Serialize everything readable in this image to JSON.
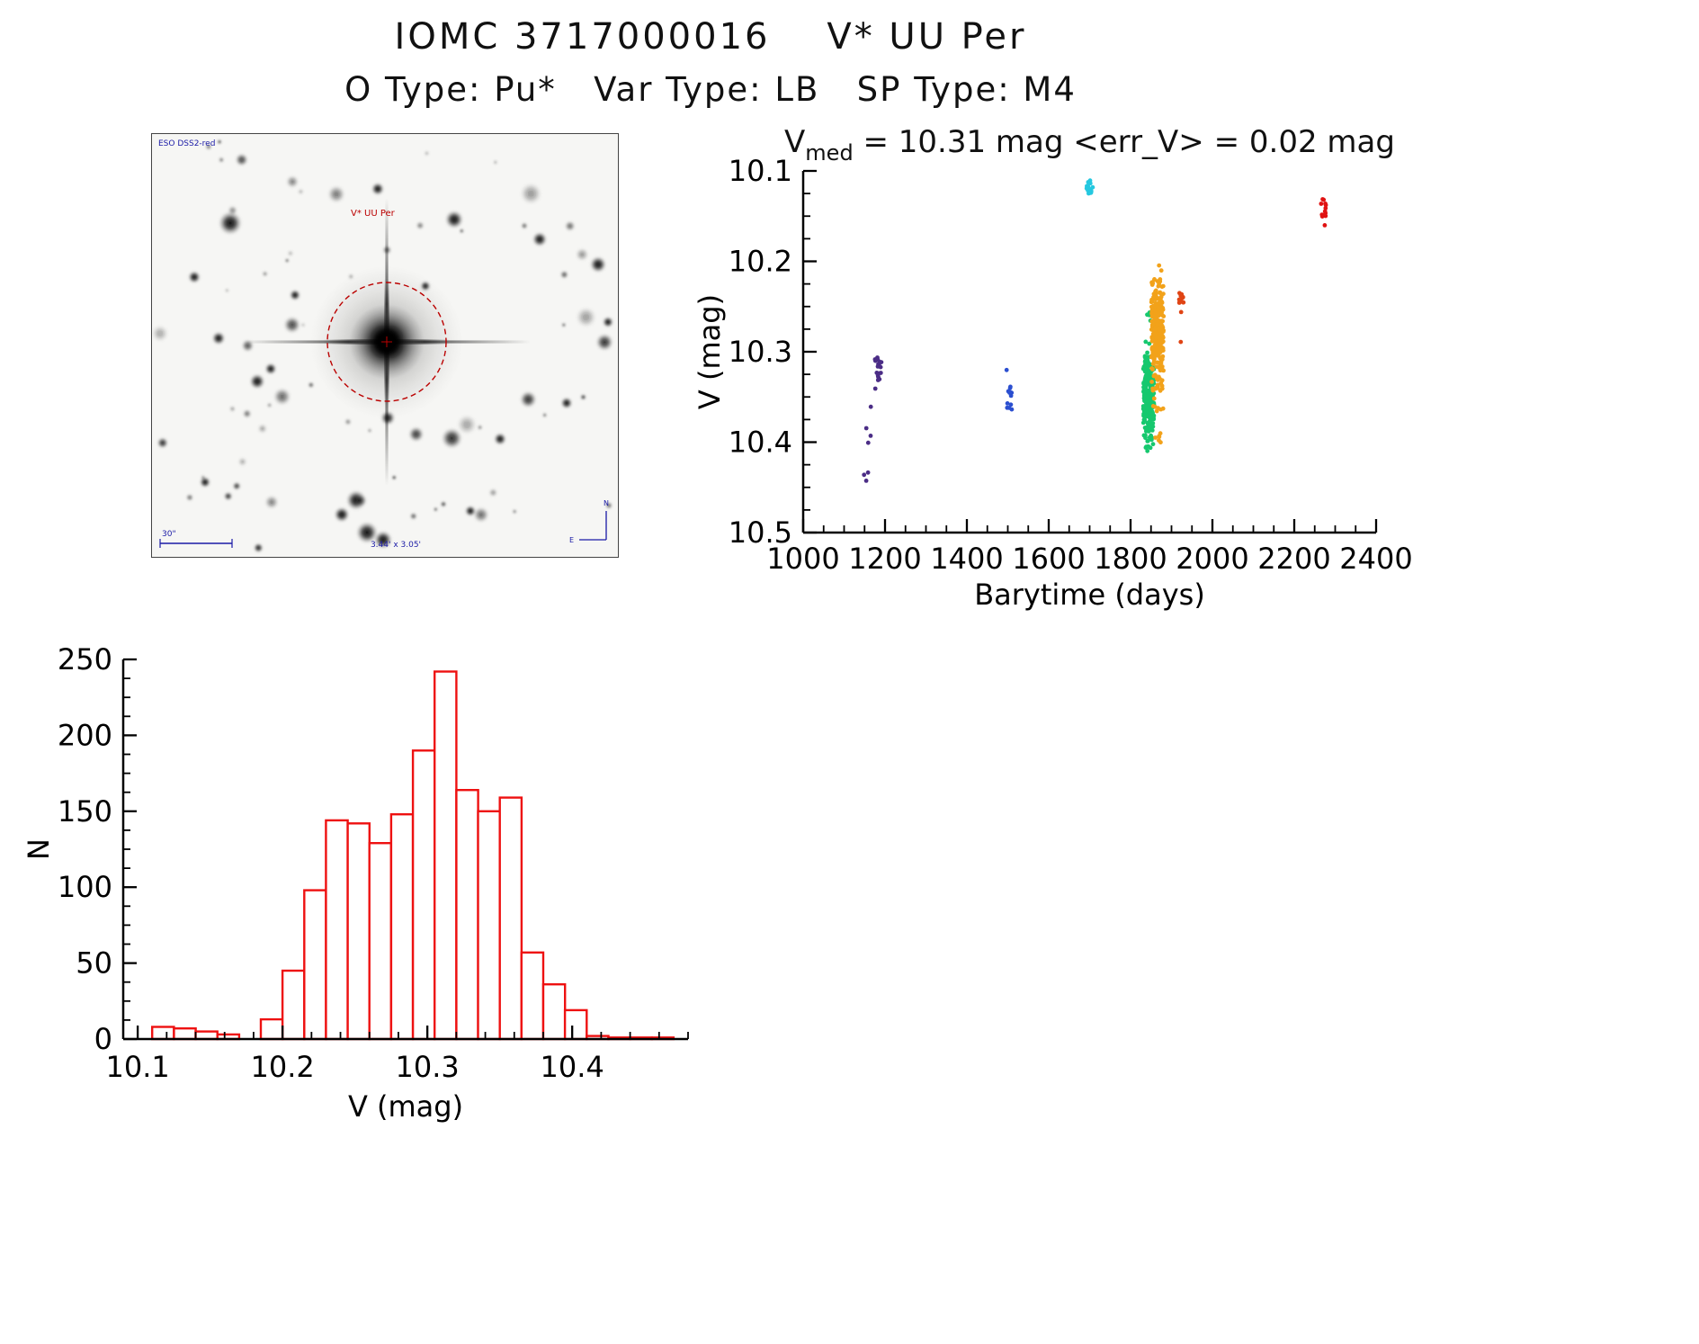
{
  "page": {
    "title": "IOMC 3717000016    V* UU Per",
    "subtitle": "O Type: Pu*   Var Type: LB   SP Type: M4"
  },
  "sky_image": {
    "survey_label": "ESO DSS2-red",
    "star_label": "V* UU Per",
    "scale_label": "30\"",
    "size_label": "3.44' x 3.05'",
    "compass_n": "N",
    "compass_e": "E",
    "circle_color": "#bb0000",
    "annotation_color": "#1a1aa6"
  },
  "chart_data": [
    {
      "type": "scatter",
      "title_v": "V",
      "title_sub": "med",
      "title_rest": "= 10.31 mag <err_V> = 0.02 mag",
      "xlabel": "Barytime (days)",
      "ylabel": "V (mag)",
      "xlim": [
        1000,
        2400
      ],
      "ylim": [
        10.1,
        10.5
      ],
      "y_inverted": true,
      "xticks": [
        1000,
        1200,
        1400,
        1600,
        1800,
        2000,
        2200,
        2400
      ],
      "yticks": [
        10.1,
        10.2,
        10.3,
        10.4,
        10.5
      ],
      "grid": false,
      "legend": "none",
      "clusters": [
        {
          "label": "epoch-1-purple",
          "color": "#4b2d86",
          "x": 1183,
          "x_spread": 8,
          "y_min": 10.285,
          "y_max": 10.35,
          "n": 18,
          "dist": "normal"
        },
        {
          "label": "epoch-1-purple-faint",
          "color": "#4b2d86",
          "x": 1157,
          "x_spread": 10,
          "y_min": 10.345,
          "y_max": 10.46,
          "n": 7,
          "dist": "uniform"
        },
        {
          "label": "epoch-2-blue",
          "color": "#2b4fd0",
          "x": 1503,
          "x_spread": 7,
          "y_min": 10.315,
          "y_max": 10.375,
          "n": 13,
          "dist": "normal"
        },
        {
          "label": "epoch-3-cyan",
          "color": "#25c8e0",
          "x": 1700,
          "x_spread": 8,
          "y_min": 10.105,
          "y_max": 10.135,
          "n": 16,
          "dist": "normal"
        },
        {
          "label": "epoch-4-green",
          "color": "#16c86e",
          "x": 1844,
          "x_spread": 13,
          "y_min": 10.28,
          "y_max": 10.425,
          "n": 240,
          "dist": "normal"
        },
        {
          "label": "epoch-4-green-sparse",
          "color": "#16c86e",
          "x": 1843,
          "x_spread": 6,
          "y_min": 10.25,
          "y_max": 10.29,
          "n": 5,
          "dist": "uniform"
        },
        {
          "label": "epoch-5-orange",
          "color": "#f2a21a",
          "x": 1866,
          "x_spread": 15,
          "y_min": 10.19,
          "y_max": 10.37,
          "n": 280,
          "dist": "normal"
        },
        {
          "label": "epoch-5-orange-tail",
          "color": "#f2a21a",
          "x": 1868,
          "x_spread": 8,
          "y_min": 10.36,
          "y_max": 10.405,
          "n": 10,
          "dist": "uniform"
        },
        {
          "label": "epoch-6-vermilion",
          "color": "#e04414",
          "x": 1924,
          "x_spread": 6,
          "y_min": 10.215,
          "y_max": 10.27,
          "n": 11,
          "dist": "normal"
        },
        {
          "label": "epoch-6-vermilion-low",
          "color": "#e04414",
          "x": 1925,
          "x_spread": 3,
          "y_min": 10.288,
          "y_max": 10.295,
          "n": 1,
          "dist": "uniform"
        },
        {
          "label": "epoch-7-red",
          "color": "#e01212",
          "x": 2271,
          "x_spread": 7,
          "y_min": 10.12,
          "y_max": 10.17,
          "n": 13,
          "dist": "normal"
        }
      ]
    },
    {
      "type": "bar",
      "title": "",
      "xlabel": "V (mag)",
      "ylabel": "N",
      "xlim": [
        10.09,
        10.48
      ],
      "ylim": [
        0,
        250
      ],
      "xticks": [
        10.1,
        10.2,
        10.3,
        10.4
      ],
      "yticks": [
        0,
        50,
        100,
        150,
        200,
        250
      ],
      "grid": false,
      "bar_color": "#ee1111",
      "bin_start": 10.11,
      "bin_width": 0.015,
      "counts": [
        8,
        7,
        5,
        3,
        0,
        13,
        45,
        98,
        144,
        142,
        129,
        148,
        190,
        242,
        164,
        150,
        159,
        57,
        36,
        19,
        2,
        1,
        1,
        1
      ]
    }
  ]
}
